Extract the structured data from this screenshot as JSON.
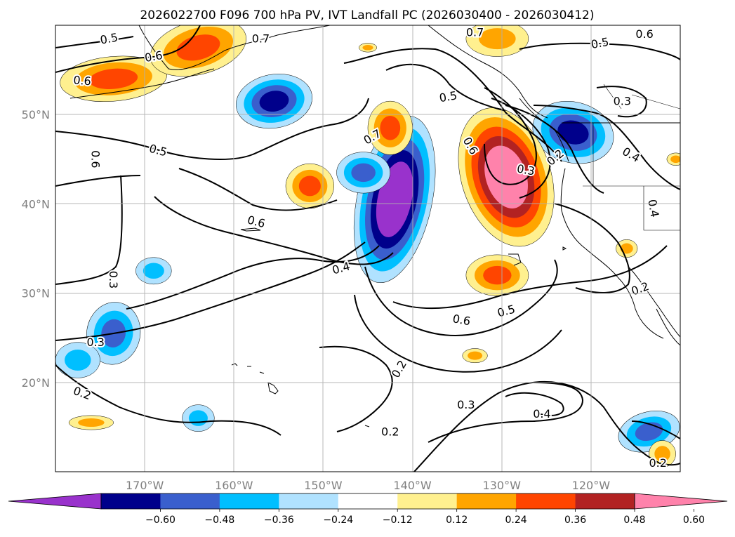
{
  "chart_data": {
    "type": "heatmap",
    "title": "2026022700 F096 700 hPa PV, IVT Landfall PC (2026030400 - 2026030412)",
    "projection": "lat-lon",
    "lon_range": [
      -180,
      -110
    ],
    "lat_range": [
      10,
      60
    ],
    "x_ticks": [
      {
        "lon": -170,
        "label": "170°W"
      },
      {
        "lon": -160,
        "label": "160°W"
      },
      {
        "lon": -150,
        "label": "150°W"
      },
      {
        "lon": -140,
        "label": "140°W"
      },
      {
        "lon": -130,
        "label": "130°W"
      },
      {
        "lon": -120,
        "label": "120°W"
      }
    ],
    "y_ticks": [
      {
        "lat": 20,
        "label": "20°N"
      },
      {
        "lat": 30,
        "label": "30°N"
      },
      {
        "lat": 40,
        "label": "40°N"
      },
      {
        "lat": 50,
        "label": "50°N"
      }
    ],
    "grid": true,
    "colorbar": {
      "boundaries": [
        -0.72,
        -0.6,
        -0.48,
        -0.36,
        -0.24,
        -0.12,
        0.12,
        0.24,
        0.36,
        0.48,
        0.6,
        0.72
      ],
      "colors": [
        "#9932cc",
        "#00008b",
        "#3a5fcd",
        "#00bfff",
        "#b0e2ff",
        "#ffffff",
        "#fff08f",
        "#ffa500",
        "#ff4500",
        "#b22222",
        "#ff82ab"
      ],
      "tick_labels": [
        "−0.60",
        "−0.48",
        "−0.36",
        "−0.24",
        "−0.12",
        "0.12",
        "0.24",
        "0.36",
        "0.48",
        "0.60"
      ],
      "extend": "both",
      "position": "bottom"
    },
    "shaded_features": [
      {
        "lon": -142.0,
        "lat": 40.5,
        "rx": 4.2,
        "ry": 9.5,
        "rot": 12,
        "value": -0.72
      },
      {
        "lon": -155.5,
        "lat": 51.5,
        "rx": 4.3,
        "ry": 3.0,
        "rot": -10,
        "value": -0.5
      },
      {
        "lon": -145.5,
        "lat": 43.5,
        "rx": 3.0,
        "ry": 2.3,
        "rot": 0,
        "value": -0.4
      },
      {
        "lon": -122.0,
        "lat": 48.0,
        "rx": 4.6,
        "ry": 3.4,
        "rot": 15,
        "value": -0.55
      },
      {
        "lon": -173.5,
        "lat": 25.5,
        "rx": 3.0,
        "ry": 3.5,
        "rot": 10,
        "value": -0.4
      },
      {
        "lon": -169.0,
        "lat": 32.5,
        "rx": 2.0,
        "ry": 1.5,
        "rot": 0,
        "value": -0.3
      },
      {
        "lon": -177.5,
        "lat": 22.5,
        "rx": 2.5,
        "ry": 2.0,
        "rot": 0,
        "value": -0.3
      },
      {
        "lon": -164.0,
        "lat": 16.0,
        "rx": 1.8,
        "ry": 1.5,
        "rot": 0,
        "value": -0.25
      },
      {
        "lon": -113.5,
        "lat": 14.5,
        "rx": 3.5,
        "ry": 2.2,
        "rot": -15,
        "value": -0.4
      },
      {
        "lon": -129.5,
        "lat": 43.0,
        "rx": 5.0,
        "ry": 8.0,
        "rot": -18,
        "value": 0.72
      },
      {
        "lon": -130.5,
        "lat": 32.0,
        "rx": 3.5,
        "ry": 2.3,
        "rot": 0,
        "value": 0.42
      },
      {
        "lon": -173.5,
        "lat": 54.0,
        "rx": 6.0,
        "ry": 2.5,
        "rot": -5,
        "value": 0.4
      },
      {
        "lon": -164.0,
        "lat": 57.5,
        "rx": 5.5,
        "ry": 3.0,
        "rot": -15,
        "value": 0.42
      },
      {
        "lon": -130.5,
        "lat": 58.5,
        "rx": 3.5,
        "ry": 2.0,
        "rot": 0,
        "value": 0.35
      },
      {
        "lon": -151.5,
        "lat": 42.0,
        "rx": 2.7,
        "ry": 2.5,
        "rot": 0,
        "value": 0.4
      },
      {
        "lon": -142.5,
        "lat": 48.5,
        "rx": 2.5,
        "ry": 3.0,
        "rot": 0,
        "value": 0.4
      },
      {
        "lon": -176.0,
        "lat": 15.5,
        "rx": 2.5,
        "ry": 0.8,
        "rot": 0,
        "value": 0.35
      },
      {
        "lon": -133.0,
        "lat": 23.0,
        "rx": 1.4,
        "ry": 0.8,
        "rot": 0,
        "value": 0.25
      },
      {
        "lon": -116.0,
        "lat": 35.0,
        "rx": 1.2,
        "ry": 1.0,
        "rot": 0,
        "value": 0.3
      },
      {
        "lon": -112.0,
        "lat": 12.0,
        "rx": 1.5,
        "ry": 1.5,
        "rot": 0,
        "value": 0.3
      },
      {
        "lon": -110.5,
        "lat": 45.0,
        "rx": 1.0,
        "ry": 0.7,
        "rot": 0,
        "value": 0.3
      },
      {
        "lon": -145.0,
        "lat": 57.5,
        "rx": 1.0,
        "ry": 0.5,
        "rot": 0,
        "value": 0.3
      }
    ],
    "contour_labels": [
      {
        "text": "0.5",
        "lon": -174.0,
        "lat": 58.5,
        "rot": -10
      },
      {
        "text": "0.6",
        "lon": -169.0,
        "lat": 56.5,
        "rot": -10
      },
      {
        "text": "0.6",
        "lon": -177.0,
        "lat": 53.8,
        "rot": 5
      },
      {
        "text": "0.5",
        "lon": -168.5,
        "lat": 46.0,
        "rot": 15
      },
      {
        "text": "0.6",
        "lon": -175.5,
        "lat": 45.0,
        "rot": 90
      },
      {
        "text": "0.6",
        "lon": -157.5,
        "lat": 38.0,
        "rot": 15
      },
      {
        "text": "0.3",
        "lon": -173.5,
        "lat": 31.5,
        "rot": 90
      },
      {
        "text": "0.3",
        "lon": -175.5,
        "lat": 24.5,
        "rot": 0
      },
      {
        "text": "0.2",
        "lon": -177.0,
        "lat": 18.8,
        "rot": 20
      },
      {
        "text": "0.4",
        "lon": -148.0,
        "lat": 32.8,
        "rot": -15
      },
      {
        "text": "0.7",
        "lon": -144.5,
        "lat": 47.5,
        "rot": -30
      },
      {
        "text": "0.5",
        "lon": -136.0,
        "lat": 52.0,
        "rot": -10
      },
      {
        "text": "0.6",
        "lon": -133.5,
        "lat": 46.5,
        "rot": 60
      },
      {
        "text": "0.3",
        "lon": -127.3,
        "lat": 43.8,
        "rot": 10
      },
      {
        "text": "0.2",
        "lon": -124.0,
        "lat": 45.2,
        "rot": -40
      },
      {
        "text": "0.6",
        "lon": -134.5,
        "lat": 27.0,
        "rot": 10
      },
      {
        "text": "0.5",
        "lon": -129.5,
        "lat": 28.0,
        "rot": -15
      },
      {
        "text": "0.2",
        "lon": -141.5,
        "lat": 21.5,
        "rot": -60
      },
      {
        "text": "0.3",
        "lon": -134.0,
        "lat": 17.5,
        "rot": 0
      },
      {
        "text": "0.2",
        "lon": -142.5,
        "lat": 14.5,
        "rot": 0
      },
      {
        "text": "0.4",
        "lon": -125.5,
        "lat": 16.5,
        "rot": 0
      },
      {
        "text": "0.5",
        "lon": -119.0,
        "lat": 58.0,
        "rot": -10
      },
      {
        "text": "0.6",
        "lon": -114.0,
        "lat": 59.0,
        "rot": 0
      },
      {
        "text": "0.3",
        "lon": -116.5,
        "lat": 51.5,
        "rot": 0
      },
      {
        "text": "0.4",
        "lon": -115.5,
        "lat": 45.5,
        "rot": 30
      },
      {
        "text": "0.4",
        "lon": -113.0,
        "lat": 39.5,
        "rot": 80
      },
      {
        "text": "0.2",
        "lon": -114.5,
        "lat": 30.5,
        "rot": -20
      },
      {
        "text": "0.2",
        "lon": -112.5,
        "lat": 11.0,
        "rot": 0
      },
      {
        "text": "0.7",
        "lon": -133.0,
        "lat": 59.2,
        "rot": 0
      },
      {
        "text": "0.7",
        "lon": -157.0,
        "lat": 58.5,
        "rot": 0
      }
    ]
  }
}
